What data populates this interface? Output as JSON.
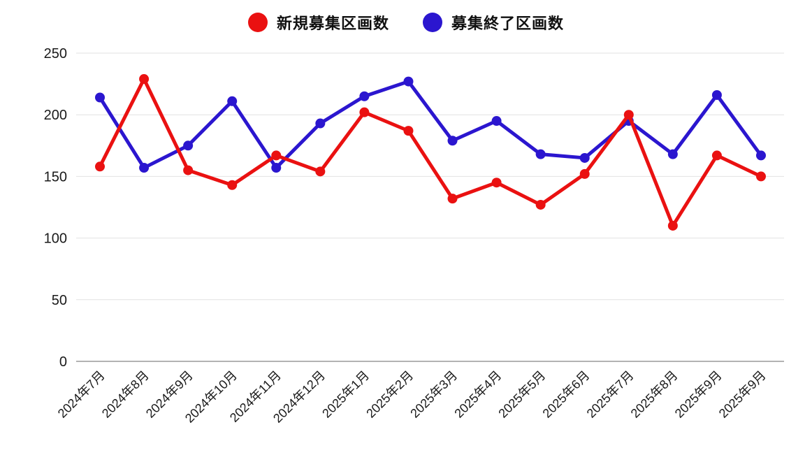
{
  "colors": {
    "series_red": "#ea1111",
    "series_blue": "#2b16cf",
    "grid": "#e2e2e2",
    "zero_axis": "#9a9a9a",
    "tick_text": "#1a1a1a",
    "background": "#ffffff"
  },
  "chart_data": {
    "type": "line",
    "title": "",
    "xlabel": "",
    "ylabel": "",
    "categories": [
      "2024年7月",
      "2024年8月",
      "2024年9月",
      "2024年10月",
      "2024年11月",
      "2024年12月",
      "2025年1月",
      "2025年2月",
      "2025年3月",
      "2025年4月",
      "2025年5月",
      "2025年6月",
      "2025年7月",
      "2025年8月",
      "2025年9月",
      "2025年9月"
    ],
    "series": [
      {
        "name": "新規募集区画数",
        "color": "#ea1111",
        "values": [
          158,
          229,
          155,
          143,
          167,
          154,
          202,
          187,
          132,
          145,
          127,
          152,
          200,
          110,
          167,
          150
        ]
      },
      {
        "name": "募集終了区画数",
        "color": "#2b16cf",
        "values": [
          214,
          157,
          175,
          211,
          157,
          193,
          215,
          227,
          179,
          195,
          168,
          165,
          195,
          168,
          216,
          167
        ]
      }
    ],
    "ylim": [
      0,
      250
    ],
    "yticks": [
      0,
      50,
      100,
      150,
      200,
      250
    ],
    "grid": true,
    "legend_position": "top",
    "x_tick_rotation_deg": -45,
    "marker": "circle"
  }
}
